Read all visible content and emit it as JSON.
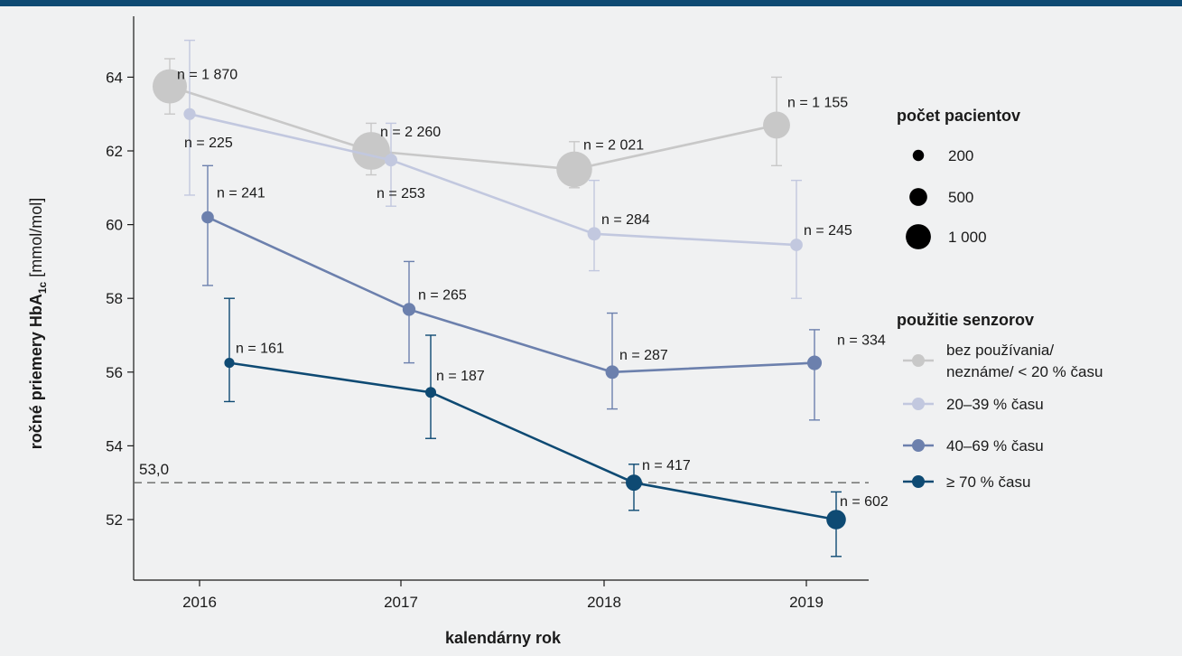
{
  "chart_data": {
    "type": "line",
    "xlabel": "kalendárny rok",
    "ylabel_main": "ročné priemery HbA",
    "ylabel_sub": "1c",
    "ylabel_unit": " [mmol/mol]",
    "x": [
      2016,
      2017,
      2018,
      2019
    ],
    "xticks": [
      "2016",
      "2017",
      "2018",
      "2019"
    ],
    "yticks": [
      52,
      54,
      56,
      58,
      60,
      62,
      64
    ],
    "ytick_labels": [
      "52",
      "54",
      "56",
      "58",
      "60",
      "62",
      "64"
    ],
    "ylim": [
      50.9,
      65.5
    ],
    "reference_line": {
      "value": 53.0,
      "label": "53,0",
      "style": "dashed"
    },
    "series": [
      {
        "name": "bez používania/ neznáme/ < 20 % času",
        "color": "#c8c8c8",
        "y": [
          63.75,
          62.0,
          61.5,
          62.7
        ],
        "ci_low": [
          63.0,
          61.35,
          61.0,
          61.6
        ],
        "ci_high": [
          64.5,
          62.75,
          62.25,
          64.0
        ],
        "n_labels": [
          "n = 1 870",
          "n = 2 260",
          "n = 2 021",
          "n = 1 155"
        ],
        "n": [
          1870,
          2260,
          2021,
          1155
        ]
      },
      {
        "name": "20–39 % času",
        "color": "#c2c8df",
        "y": [
          63.0,
          61.75,
          59.75,
          59.45
        ],
        "ci_low": [
          60.8,
          60.5,
          58.75,
          58.0
        ],
        "ci_high": [
          65.0,
          62.75,
          61.2,
          61.2
        ],
        "n_labels": [
          "n = 225",
          "n = 253",
          "n = 284",
          "n = 245"
        ],
        "n": [
          225,
          253,
          284,
          245
        ]
      },
      {
        "name": "40–69 % času",
        "color": "#6c80ad",
        "y": [
          60.2,
          57.7,
          56.0,
          56.25
        ],
        "ci_low": [
          58.35,
          56.25,
          55.0,
          54.7
        ],
        "ci_high": [
          61.6,
          59.0,
          57.6,
          57.15
        ],
        "n_labels": [
          "n = 241",
          "n = 265",
          "n = 287",
          "n = 334"
        ],
        "n": [
          241,
          265,
          287,
          334
        ]
      },
      {
        "name": "≥ 70 % času",
        "color": "#0e4a73",
        "y": [
          56.25,
          55.45,
          53.0,
          52.0
        ],
        "ci_low": [
          55.2,
          54.2,
          52.25,
          51.0
        ],
        "ci_high": [
          58.0,
          57.0,
          53.5,
          52.75
        ],
        "n_labels": [
          "n = 161",
          "n = 187",
          "n = 417",
          "n = 602"
        ],
        "n": [
          161,
          187,
          417,
          602
        ]
      }
    ],
    "legend_size": {
      "title": "počet pacientov",
      "items": [
        {
          "label": "200",
          "value": 200
        },
        {
          "label": "500",
          "value": 500
        },
        {
          "label": "1 000",
          "value": 1000
        }
      ]
    },
    "legend_color": {
      "title": "použitie senzorov",
      "items": [
        {
          "line1": "bez používania/",
          "line2": "neznáme/ < 20 % času"
        },
        {
          "line1": "20–39 % času",
          "line2": ""
        },
        {
          "line1": "40–69 % času",
          "line2": ""
        },
        {
          "line1": "≥ 70 % času",
          "line2": ""
        }
      ]
    },
    "grid": false,
    "legend_position": "right"
  }
}
